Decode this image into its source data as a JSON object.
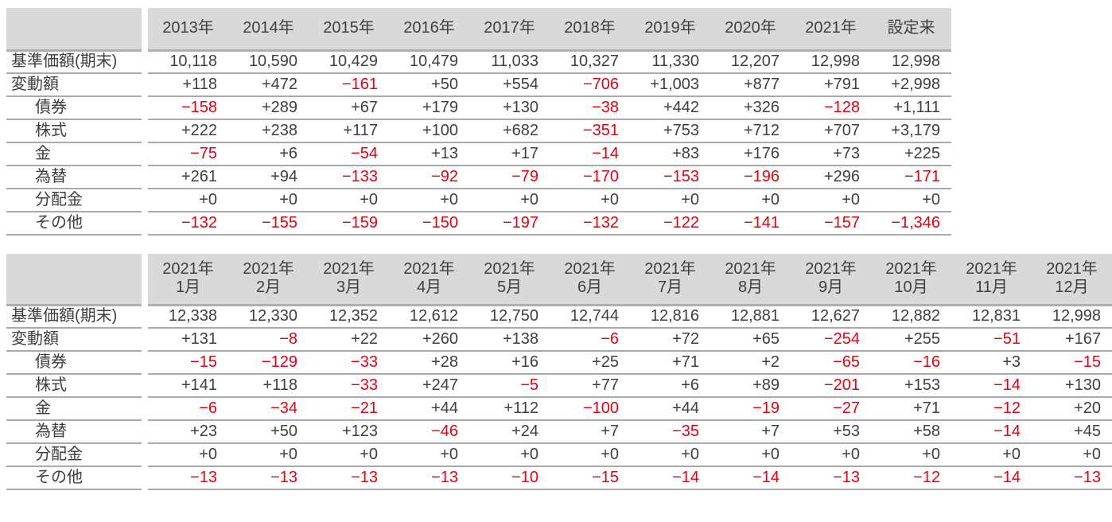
{
  "colors": {
    "text": "#3f3f3f",
    "negative": "#e60012",
    "header_bg": "#d9d9d9",
    "row_line": "#a9a9a9",
    "header_line": "#b0b0b0"
  },
  "tables": [
    {
      "id": "yearly",
      "name": "yearly-performance-table",
      "columns": [
        "2013年",
        "2014年",
        "2015年",
        "2016年",
        "2017年",
        "2018年",
        "2019年",
        "2020年",
        "2021年",
        "設定来"
      ],
      "rows": [
        {
          "label": "基準価額(期末)",
          "indent": false,
          "values": [
            "10,118",
            "10,590",
            "10,429",
            "10,479",
            "11,033",
            "10,327",
            "11,330",
            "12,207",
            "12,998",
            "12,998"
          ]
        },
        {
          "label": "変動額",
          "indent": false,
          "values": [
            "+118",
            "+472",
            "−161",
            "+50",
            "+554",
            "−706",
            "+1,003",
            "+877",
            "+791",
            "+2,998"
          ]
        },
        {
          "label": "債券",
          "indent": true,
          "values": [
            "−158",
            "+289",
            "+67",
            "+179",
            "+130",
            "−38",
            "+442",
            "+326",
            "−128",
            "+1,111"
          ]
        },
        {
          "label": "株式",
          "indent": true,
          "values": [
            "+222",
            "+238",
            "+117",
            "+100",
            "+682",
            "−351",
            "+753",
            "+712",
            "+707",
            "+3,179"
          ]
        },
        {
          "label": "金",
          "indent": true,
          "values": [
            "−75",
            "+6",
            "−54",
            "+13",
            "+17",
            "−14",
            "+83",
            "+176",
            "+73",
            "+225"
          ]
        },
        {
          "label": "為替",
          "indent": true,
          "values": [
            "+261",
            "+94",
            "−133",
            "−92",
            "−79",
            "−170",
            "−153",
            "−196",
            "+296",
            "−171"
          ]
        },
        {
          "label": "分配金",
          "indent": true,
          "values": [
            "+0",
            "+0",
            "+0",
            "+0",
            "+0",
            "+0",
            "+0",
            "+0",
            "+0",
            "+0"
          ]
        },
        {
          "label": "その他",
          "indent": true,
          "values": [
            "−132",
            "−155",
            "−159",
            "−150",
            "−197",
            "−132",
            "−122",
            "−141",
            "−157",
            "−1,346"
          ]
        }
      ]
    },
    {
      "id": "monthly",
      "name": "monthly-performance-table",
      "columns": [
        [
          "2021年",
          "1月"
        ],
        [
          "2021年",
          "2月"
        ],
        [
          "2021年",
          "3月"
        ],
        [
          "2021年",
          "4月"
        ],
        [
          "2021年",
          "5月"
        ],
        [
          "2021年",
          "6月"
        ],
        [
          "2021年",
          "7月"
        ],
        [
          "2021年",
          "8月"
        ],
        [
          "2021年",
          "9月"
        ],
        [
          "2021年",
          "10月"
        ],
        [
          "2021年",
          "11月"
        ],
        [
          "2021年",
          "12月"
        ]
      ],
      "rows": [
        {
          "label": "基準価額(期末)",
          "indent": false,
          "values": [
            "12,338",
            "12,330",
            "12,352",
            "12,612",
            "12,750",
            "12,744",
            "12,816",
            "12,881",
            "12,627",
            "12,882",
            "12,831",
            "12,998"
          ]
        },
        {
          "label": "変動額",
          "indent": false,
          "values": [
            "+131",
            "−8",
            "+22",
            "+260",
            "+138",
            "−6",
            "+72",
            "+65",
            "−254",
            "+255",
            "−51",
            "+167"
          ]
        },
        {
          "label": "債券",
          "indent": true,
          "values": [
            "−15",
            "−129",
            "−33",
            "+28",
            "+16",
            "+25",
            "+71",
            "+2",
            "−65",
            "−16",
            "+3",
            "−15"
          ]
        },
        {
          "label": "株式",
          "indent": true,
          "values": [
            "+141",
            "+118",
            "−33",
            "+247",
            "−5",
            "+77",
            "+6",
            "+89",
            "−201",
            "+153",
            "−14",
            "+130"
          ]
        },
        {
          "label": "金",
          "indent": true,
          "values": [
            "−6",
            "−34",
            "−21",
            "+44",
            "+112",
            "−100",
            "+44",
            "−19",
            "−27",
            "+71",
            "−12",
            "+20"
          ]
        },
        {
          "label": "為替",
          "indent": true,
          "values": [
            "+23",
            "+50",
            "+123",
            "−46",
            "+24",
            "+7",
            "−35",
            "+7",
            "+53",
            "+58",
            "−14",
            "+45"
          ]
        },
        {
          "label": "分配金",
          "indent": true,
          "values": [
            "+0",
            "+0",
            "+0",
            "+0",
            "+0",
            "+0",
            "+0",
            "+0",
            "+0",
            "+0",
            "+0",
            "+0"
          ]
        },
        {
          "label": "その他",
          "indent": true,
          "values": [
            "−13",
            "−13",
            "−13",
            "−13",
            "−10",
            "−15",
            "−14",
            "−14",
            "−13",
            "−12",
            "−14",
            "−13"
          ]
        }
      ]
    }
  ]
}
